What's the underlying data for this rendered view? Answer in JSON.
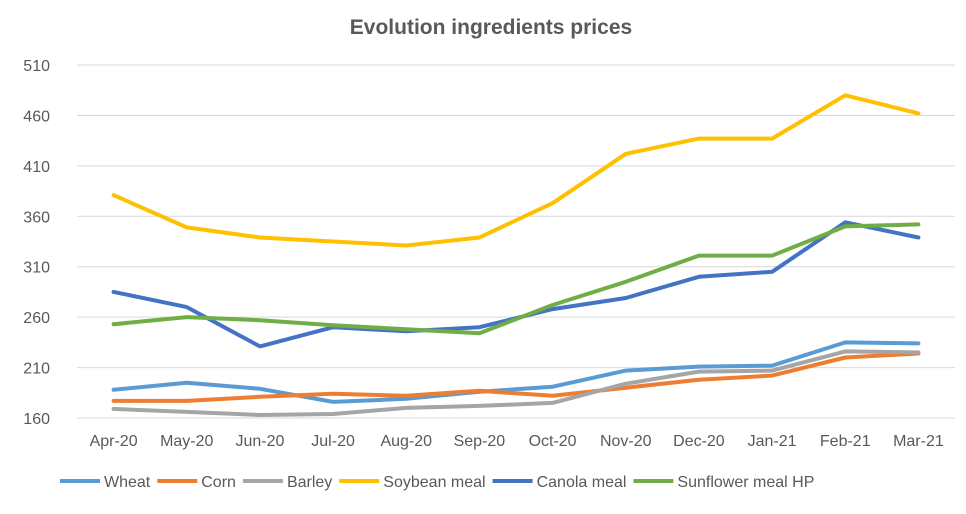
{
  "chart_data": {
    "type": "line",
    "title": "Evolution ingredients prices",
    "xlabel": "",
    "ylabel": "",
    "categories": [
      "Apr-20",
      "May-20",
      "Jun-20",
      "Jul-20",
      "Aug-20",
      "Sep-20",
      "Oct-20",
      "Nov-20",
      "Dec-20",
      "Jan-21",
      "Feb-21",
      "Mar-21"
    ],
    "y_ticks": [
      160,
      210,
      260,
      310,
      360,
      410,
      460,
      510
    ],
    "ylim": [
      160,
      510
    ],
    "grid": true,
    "legend_position": "bottom",
    "series": [
      {
        "name": "Wheat",
        "color": "#5b9bd5",
        "values": [
          188,
          195,
          189,
          176,
          179,
          186,
          191,
          207,
          211,
          212,
          235,
          234
        ]
      },
      {
        "name": "Corn",
        "color": "#ed7d31",
        "values": [
          177,
          177,
          181,
          184,
          182,
          187,
          182,
          190,
          198,
          202,
          220,
          224
        ]
      },
      {
        "name": "Barley",
        "color": "#a5a5a5",
        "values": [
          169,
          166,
          163,
          164,
          170,
          172,
          175,
          194,
          206,
          207,
          226,
          225
        ]
      },
      {
        "name": "Soybean meal",
        "color": "#ffc000",
        "values": [
          381,
          349,
          339,
          335,
          331,
          339,
          373,
          422,
          437,
          437,
          480,
          462
        ]
      },
      {
        "name": "Canola meal",
        "color": "#4472c4",
        "values": [
          285,
          270,
          231,
          250,
          246,
          250,
          268,
          279,
          300,
          305,
          354,
          339
        ]
      },
      {
        "name": "Sunflower meal HP",
        "color": "#70ad47",
        "values": [
          253,
          260,
          257,
          252,
          248,
          244,
          272,
          295,
          321,
          321,
          350,
          352
        ]
      }
    ]
  }
}
